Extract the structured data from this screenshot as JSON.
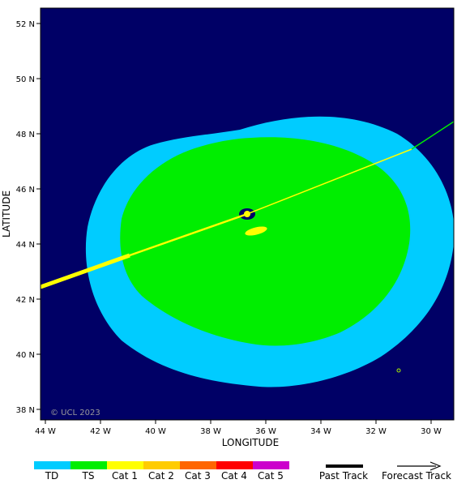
{
  "map": {
    "xlabel": "LONGITUDE",
    "ylabel": "LATITUDE",
    "watermark": "© UCL 2023",
    "lat_ticks": [
      "38 N",
      "40 N",
      "42 N",
      "44 N",
      "46 N",
      "48 N",
      "50 N",
      "52 N"
    ],
    "lon_ticks": [
      "44 W",
      "42 W",
      "40 W",
      "38 W",
      "36 W",
      "34 W",
      "32 W",
      "30 W"
    ],
    "colors": {
      "ocean": "#000066",
      "td": "#00ccff",
      "ts": "#00ee00",
      "cat1": "#ffff00",
      "cat2": "#ffcc00",
      "cat3": "#ff6600",
      "cat4": "#ff0000",
      "cat5": "#cc00cc"
    }
  },
  "legend": {
    "categories": [
      {
        "label": "TD",
        "color": "#00ccff"
      },
      {
        "label": "TS",
        "color": "#00ee00"
      },
      {
        "label": "Cat 1",
        "color": "#ffff00"
      },
      {
        "label": "Cat 2",
        "color": "#ffcc00"
      },
      {
        "label": "Cat 3",
        "color": "#ff6600"
      },
      {
        "label": "Cat 4",
        "color": "#ff0000"
      },
      {
        "label": "Cat 5",
        "color": "#cc00cc"
      }
    ],
    "past_track_label": "Past Track",
    "forecast_track_label": "Forecast Track"
  }
}
